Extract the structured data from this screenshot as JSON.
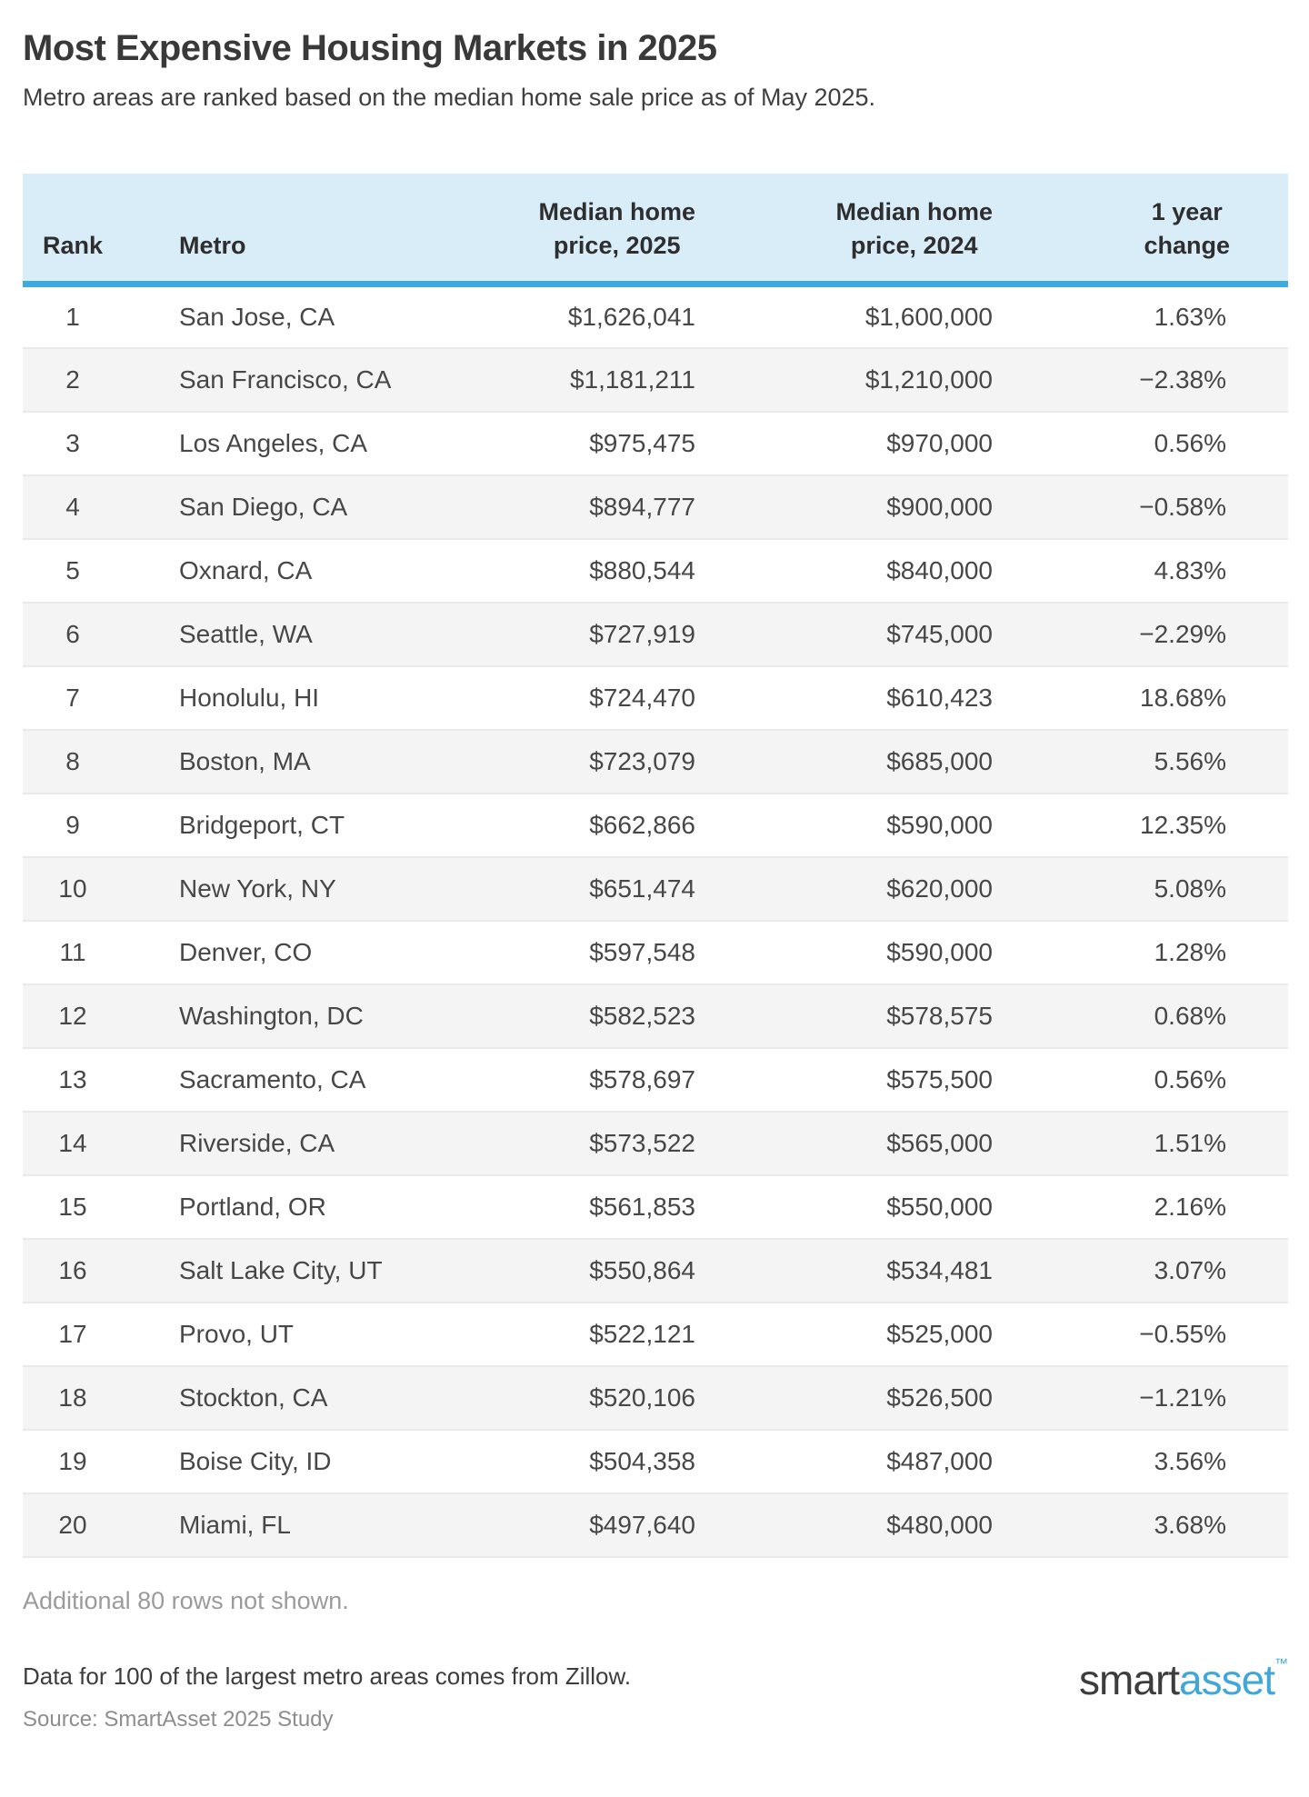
{
  "page": {
    "title": "Most Expensive Housing Markets in 2025",
    "subtitle": "Metro areas are ranked based on the median home sale price as of May 2025."
  },
  "table": {
    "header": {
      "rank": "Rank",
      "metro": "Metro",
      "price_2025_line1": "Median home",
      "price_2025_line2": "price, 2025",
      "price_2024_line1": "Median home",
      "price_2024_line2": "price, 2024",
      "change_line1": "1 year",
      "change_line2": "change"
    }
  },
  "chart_data": {
    "type": "table",
    "title": "Most Expensive Housing Markets in 2025",
    "subtitle": "Metro areas are ranked based on the median home sale price as of May 2025.",
    "columns": [
      "Rank",
      "Metro",
      "Median home price, 2025",
      "Median home price, 2024",
      "1 year change"
    ],
    "rows": [
      {
        "rank": "1",
        "metro": "San Jose, CA",
        "price_2025": "$1,626,041",
        "price_2024": "$1,600,000",
        "change": "1.63%"
      },
      {
        "rank": "2",
        "metro": "San Francisco, CA",
        "price_2025": "$1,181,211",
        "price_2024": "$1,210,000",
        "change": "−2.38%"
      },
      {
        "rank": "3",
        "metro": "Los Angeles, CA",
        "price_2025": "$975,475",
        "price_2024": "$970,000",
        "change": "0.56%"
      },
      {
        "rank": "4",
        "metro": "San Diego, CA",
        "price_2025": "$894,777",
        "price_2024": "$900,000",
        "change": "−0.58%"
      },
      {
        "rank": "5",
        "metro": "Oxnard, CA",
        "price_2025": "$880,544",
        "price_2024": "$840,000",
        "change": "4.83%"
      },
      {
        "rank": "6",
        "metro": "Seattle, WA",
        "price_2025": "$727,919",
        "price_2024": "$745,000",
        "change": "−2.29%"
      },
      {
        "rank": "7",
        "metro": "Honolulu, HI",
        "price_2025": "$724,470",
        "price_2024": "$610,423",
        "change": "18.68%"
      },
      {
        "rank": "8",
        "metro": "Boston, MA",
        "price_2025": "$723,079",
        "price_2024": "$685,000",
        "change": "5.56%"
      },
      {
        "rank": "9",
        "metro": "Bridgeport, CT",
        "price_2025": "$662,866",
        "price_2024": "$590,000",
        "change": "12.35%"
      },
      {
        "rank": "10",
        "metro": "New York, NY",
        "price_2025": "$651,474",
        "price_2024": "$620,000",
        "change": "5.08%"
      },
      {
        "rank": "11",
        "metro": "Denver, CO",
        "price_2025": "$597,548",
        "price_2024": "$590,000",
        "change": "1.28%"
      },
      {
        "rank": "12",
        "metro": "Washington, DC",
        "price_2025": "$582,523",
        "price_2024": "$578,575",
        "change": "0.68%"
      },
      {
        "rank": "13",
        "metro": "Sacramento, CA",
        "price_2025": "$578,697",
        "price_2024": "$575,500",
        "change": "0.56%"
      },
      {
        "rank": "14",
        "metro": "Riverside, CA",
        "price_2025": "$573,522",
        "price_2024": "$565,000",
        "change": "1.51%"
      },
      {
        "rank": "15",
        "metro": "Portland, OR",
        "price_2025": "$561,853",
        "price_2024": "$550,000",
        "change": "2.16%"
      },
      {
        "rank": "16",
        "metro": "Salt Lake City, UT",
        "price_2025": "$550,864",
        "price_2024": "$534,481",
        "change": "3.07%"
      },
      {
        "rank": "17",
        "metro": "Provo, UT",
        "price_2025": "$522,121",
        "price_2024": "$525,000",
        "change": "−0.55%"
      },
      {
        "rank": "18",
        "metro": "Stockton, CA",
        "price_2025": "$520,106",
        "price_2024": "$526,500",
        "change": "−1.21%"
      },
      {
        "rank": "19",
        "metro": "Boise City, ID",
        "price_2025": "$504,358",
        "price_2024": "$487,000",
        "change": "3.56%"
      },
      {
        "rank": "20",
        "metro": "Miami, FL",
        "price_2025": "$497,640",
        "price_2024": "$480,000",
        "change": "3.68%"
      }
    ],
    "layout": {
      "alternating_row_shading": true,
      "header_underline": true,
      "numeric_columns_right_aligned": true
    }
  },
  "footer": {
    "additional_note": "Additional 80 rows not shown.",
    "data_note": "Data for 100 of the largest metro areas comes from Zillow.",
    "source_note": "Source: SmartAsset 2025 Study",
    "logo": {
      "smart": "smart",
      "asset": "asset",
      "tm": "™"
    }
  },
  "colors": {
    "accent_blue": "#3fa9e1",
    "header_background": "#d9edf9",
    "alt_row_background": "#f4f4f4",
    "logo_blue": "#41a7d9",
    "title_text": "#393939",
    "body_text": "#474747",
    "muted_text": "#9b9b9b"
  }
}
